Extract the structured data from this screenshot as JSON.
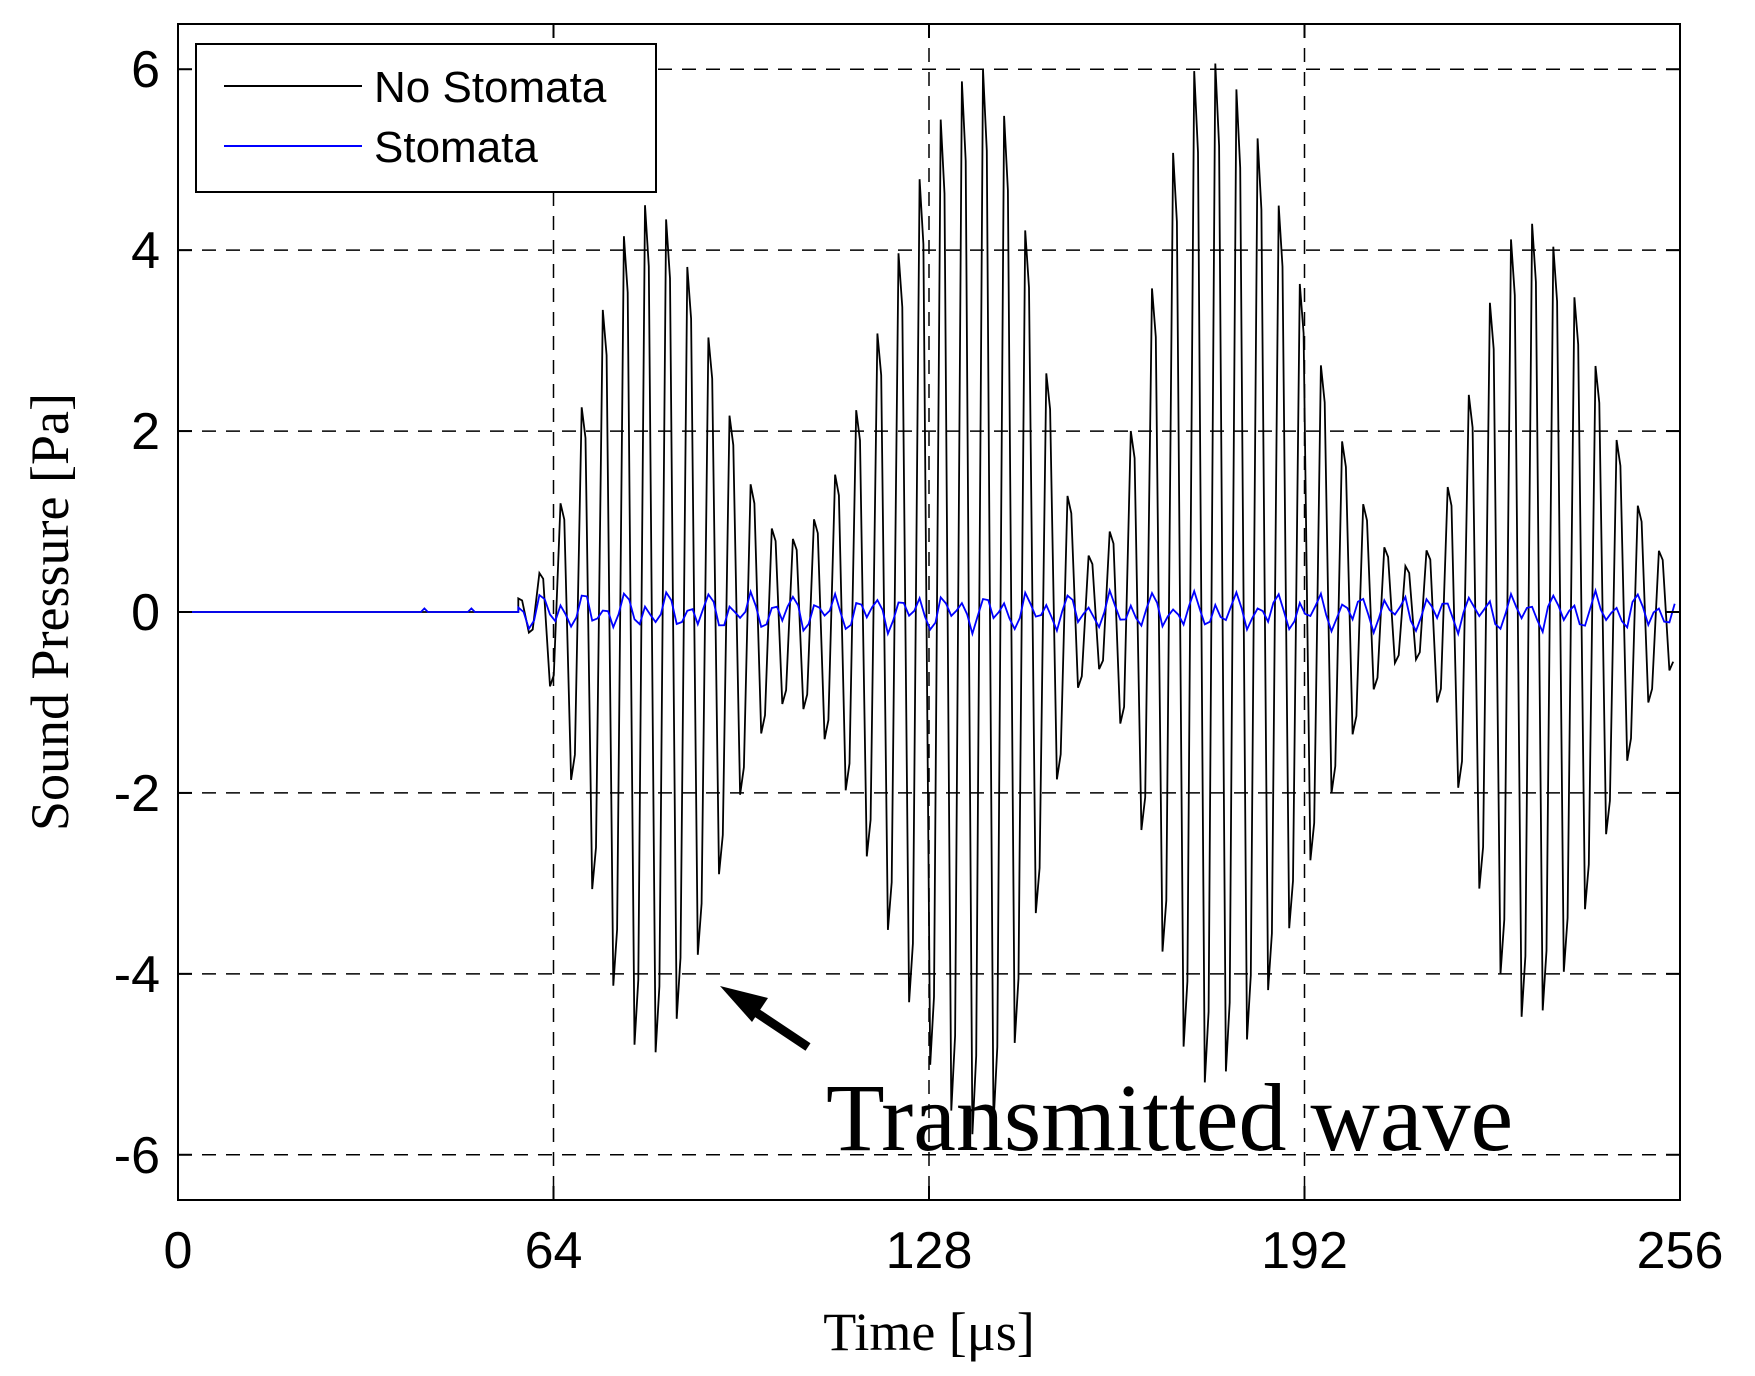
{
  "chart_data": {
    "type": "line",
    "title": "",
    "xlabel": "Time [μs]",
    "ylabel": "Sound Pressure [Pa]",
    "xlim": [
      0,
      256
    ],
    "ylim": [
      -6.5,
      6.5
    ],
    "xticks": [
      0,
      64,
      128,
      192,
      256
    ],
    "yticks": [
      -6,
      -4,
      -2,
      0,
      2,
      4,
      6
    ],
    "x_tick_labels": [
      "0",
      "64",
      "128",
      "192",
      "256"
    ],
    "y_tick_labels": [
      "-6",
      "-4",
      "-2",
      "0",
      "2",
      "4",
      "6"
    ],
    "grid": "dashed, at x = 64, 128, 192 and y = -6, -4, -2, 2, 4, 6",
    "legend_position": "top-left",
    "series": [
      {
        "name": "No Stomata",
        "color": "#000000",
        "description": "Transmitted burst oscillation starting near 58 μs; peak-to-peak envelope with lobes reaching about ±4.5 Pa near 80 μs, about ±6 Pa near 137 μs and 175 μs, about ±4.3 Pa near 230 μs",
        "onset_us": 58,
        "envelope_peaks": [
          {
            "x": 80,
            "max": 4.5,
            "min": -4.9
          },
          {
            "x": 104,
            "max": 0.8,
            "min": -1.0
          },
          {
            "x": 137,
            "max": 6.0,
            "min": -5.8
          },
          {
            "x": 156,
            "max": 0.6,
            "min": -0.6
          },
          {
            "x": 175,
            "max": 6.1,
            "min": -5.2
          },
          {
            "x": 210,
            "max": 0.5,
            "min": -0.5
          },
          {
            "x": 230,
            "max": 4.3,
            "min": -4.5
          }
        ]
      },
      {
        "name": "Stomata",
        "color": "#0000ff",
        "description": "Nearly flat near 0 Pa with small ripple of about ±0.25 Pa after 58 μs",
        "onset_us": 58,
        "ripple_amplitude": 0.25
      }
    ],
    "annotations": [
      {
        "text": "Transmitted wave",
        "points_to": {
          "x": 92,
          "y": -4.1
        }
      }
    ]
  },
  "legend": {
    "items": [
      {
        "label": "No Stomata",
        "color": "#000000"
      },
      {
        "label": "Stomata",
        "color": "#0000ff"
      }
    ]
  },
  "annotation_text": "Transmitted wave"
}
